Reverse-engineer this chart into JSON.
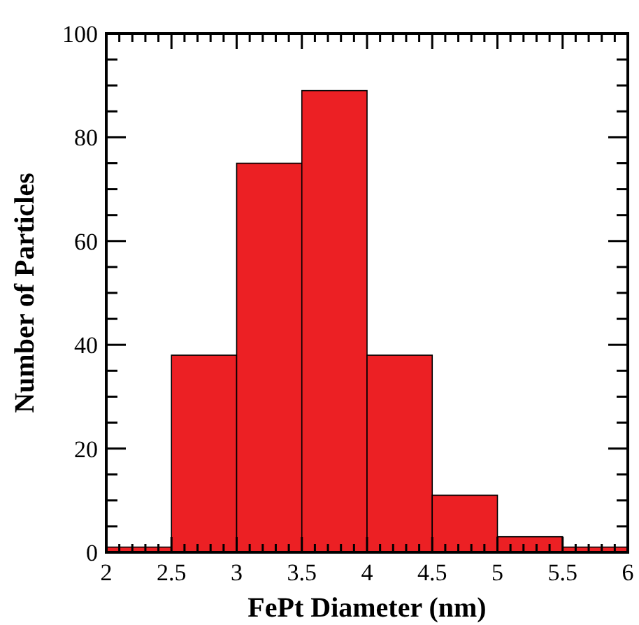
{
  "chart_data": {
    "type": "histogram",
    "xlabel": "FePt Diameter (nm)",
    "ylabel": "Number of Particles",
    "bins": [
      2,
      2.5,
      3,
      3.5,
      4,
      4.5,
      5,
      5.5,
      6
    ],
    "values": [
      1,
      38,
      75,
      89,
      38,
      11,
      3,
      1
    ],
    "color": "#ec2024",
    "xlim": [
      2,
      6
    ],
    "ylim": [
      0,
      100
    ],
    "xticks": [
      2,
      {
        "value": 2.1,
        "label": null
      },
      {
        "value": 2.2,
        "label": null
      },
      {
        "value": 2.3,
        "label": null
      },
      {
        "value": 2.4,
        "label": null
      },
      2.5,
      {
        "value": 2.6,
        "label": null
      },
      {
        "value": 2.7,
        "label": null
      },
      {
        "value": 2.8,
        "label": null
      },
      {
        "value": 2.9,
        "label": null
      },
      3,
      {
        "value": 3.1,
        "label": null
      },
      {
        "value": 3.2,
        "label": null
      },
      {
        "value": 3.3,
        "label": null
      },
      {
        "value": 3.4,
        "label": null
      },
      3.5,
      {
        "value": 3.6,
        "label": null
      },
      {
        "value": 3.7,
        "label": null
      },
      {
        "value": 3.8,
        "label": null
      },
      {
        "value": 3.9,
        "label": null
      },
      4,
      {
        "value": 4.1,
        "label": null
      },
      {
        "value": 4.2,
        "label": null
      },
      {
        "value": 4.3,
        "label": null
      },
      {
        "value": 4.4,
        "label": null
      },
      4.5,
      {
        "value": 4.6,
        "label": null
      },
      {
        "value": 4.7,
        "label": null
      },
      {
        "value": 4.8,
        "label": null
      },
      {
        "value": 4.9,
        "label": null
      },
      5,
      {
        "value": 5.1,
        "label": null
      },
      {
        "value": 5.2,
        "label": null
      },
      {
        "value": 5.3,
        "label": null
      },
      {
        "value": 5.4,
        "label": null
      },
      5.5,
      {
        "value": 5.6,
        "label": null
      },
      {
        "value": 5.7,
        "label": null
      },
      {
        "value": 5.8,
        "label": null
      },
      {
        "value": 5.9,
        "label": null
      },
      6
    ],
    "yticks": [
      0,
      {
        "value": 5,
        "label": null
      },
      {
        "value": 10,
        "label": null
      },
      {
        "value": 15,
        "label": null
      },
      20,
      {
        "value": 25,
        "label": null
      },
      {
        "value": 30,
        "label": null
      },
      {
        "value": 35,
        "label": null
      },
      40,
      {
        "value": 45,
        "label": null
      },
      {
        "value": 50,
        "label": null
      },
      {
        "value": 55,
        "label": null
      },
      60,
      {
        "value": 65,
        "label": null
      },
      {
        "value": 70,
        "label": null
      },
      {
        "value": 75,
        "label": null
      },
      80,
      {
        "value": 85,
        "label": null
      },
      {
        "value": 90,
        "label": null
      },
      {
        "value": 95,
        "label": null
      },
      100
    ],
    "grid": false
  }
}
